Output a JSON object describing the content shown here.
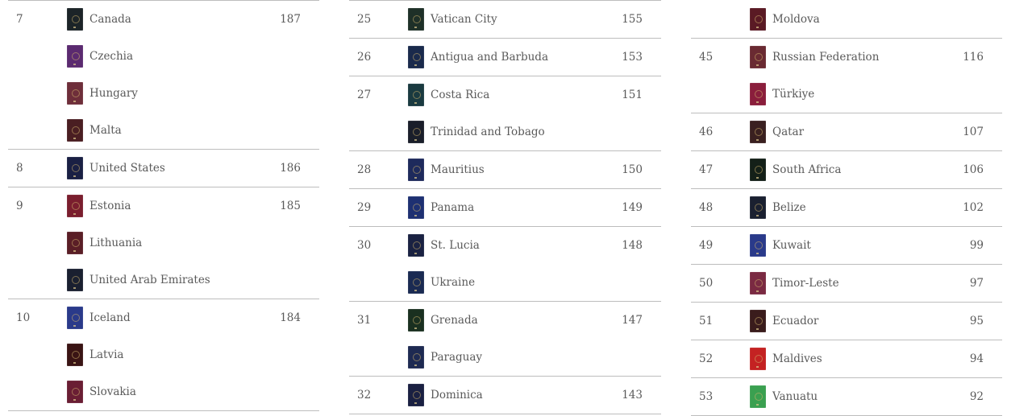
{
  "columns": [
    {
      "groups": [
        {
          "rank": "7",
          "score": "187",
          "countries": [
            {
              "name": "Canada",
              "passport_color": "#1c2428"
            },
            {
              "name": "Czechia",
              "passport_color": "#5b2a70"
            },
            {
              "name": "Hungary",
              "passport_color": "#6e2e3a"
            },
            {
              "name": "Malta",
              "passport_color": "#4a1e22"
            }
          ]
        },
        {
          "rank": "8",
          "score": "186",
          "countries": [
            {
              "name": "United States",
              "passport_color": "#1a2044"
            }
          ]
        },
        {
          "rank": "9",
          "score": "185",
          "countries": [
            {
              "name": "Estonia",
              "passport_color": "#7a1e2e"
            },
            {
              "name": "Lithuania",
              "passport_color": "#5a1e26"
            },
            {
              "name": "United Arab Emirates",
              "passport_color": "#1a2030"
            }
          ]
        },
        {
          "rank": "10",
          "score": "184",
          "countries": [
            {
              "name": "Iceland",
              "passport_color": "#2a3a8a"
            },
            {
              "name": "Latvia",
              "passport_color": "#3a1414"
            },
            {
              "name": "Slovakia",
              "passport_color": "#6a1e34"
            }
          ]
        }
      ]
    },
    {
      "groups": [
        {
          "rank": "25",
          "score": "155",
          "countries": [
            {
              "name": "Vatican City",
              "passport_color": "#1e3028"
            }
          ]
        },
        {
          "rank": "26",
          "score": "153",
          "countries": [
            {
              "name": "Antigua and Barbuda",
              "passport_color": "#1a2a4c"
            }
          ]
        },
        {
          "rank": "27",
          "score": "151",
          "countries": [
            {
              "name": "Costa Rica",
              "passport_color": "#1a3a40"
            },
            {
              "name": "Trinidad and Tobago",
              "passport_color": "#1a1e2a"
            }
          ]
        },
        {
          "rank": "28",
          "score": "150",
          "countries": [
            {
              "name": "Mauritius",
              "passport_color": "#1e2a5c"
            }
          ]
        },
        {
          "rank": "29",
          "score": "149",
          "countries": [
            {
              "name": "Panama",
              "passport_color": "#1e3072"
            }
          ]
        },
        {
          "rank": "30",
          "score": "148",
          "countries": [
            {
              "name": "St. Lucia",
              "passport_color": "#1a2242"
            },
            {
              "name": "Ukraine",
              "passport_color": "#1a2a52"
            }
          ]
        },
        {
          "rank": "31",
          "score": "147",
          "countries": [
            {
              "name": "Grenada",
              "passport_color": "#1a3020"
            },
            {
              "name": "Paraguay",
              "passport_color": "#1e2a52"
            }
          ]
        },
        {
          "rank": "32",
          "score": "143",
          "countries": [
            {
              "name": "Dominica",
              "passport_color": "#1a2042"
            }
          ]
        }
      ]
    },
    {
      "groups": [
        {
          "rank": "",
          "score": "",
          "continued": true,
          "countries": [
            {
              "name": "Moldova",
              "passport_color": "#5a1a24"
            }
          ]
        },
        {
          "rank": "45",
          "score": "116",
          "countries": [
            {
              "name": "Russian Federation",
              "passport_color": "#6a2a32"
            },
            {
              "name": "Türkiye",
              "passport_color": "#8a1e3c"
            }
          ]
        },
        {
          "rank": "46",
          "score": "107",
          "countries": [
            {
              "name": "Qatar",
              "passport_color": "#3a2020"
            }
          ]
        },
        {
          "rank": "47",
          "score": "106",
          "countries": [
            {
              "name": "South Africa",
              "passport_color": "#142018"
            }
          ]
        },
        {
          "rank": "48",
          "score": "102",
          "countries": [
            {
              "name": "Belize",
              "passport_color": "#1a2030"
            }
          ]
        },
        {
          "rank": "49",
          "score": "99",
          "countries": [
            {
              "name": "Kuwait",
              "passport_color": "#2a3a8a"
            }
          ]
        },
        {
          "rank": "50",
          "score": "97",
          "countries": [
            {
              "name": "Timor-Leste",
              "passport_color": "#7a2a42"
            }
          ]
        },
        {
          "rank": "51",
          "score": "95",
          "countries": [
            {
              "name": "Ecuador",
              "passport_color": "#3a1c1c"
            }
          ]
        },
        {
          "rank": "52",
          "score": "94",
          "countries": [
            {
              "name": "Maldives",
              "passport_color": "#c42222"
            }
          ]
        },
        {
          "rank": "53",
          "score": "92",
          "countries": [
            {
              "name": "Vanuatu",
              "passport_color": "#3aa050"
            }
          ]
        }
      ]
    }
  ]
}
